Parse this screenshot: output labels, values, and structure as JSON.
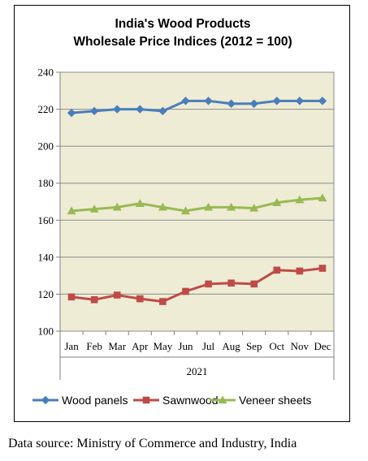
{
  "chart_data": {
    "type": "line",
    "title": [
      "India's Wood Products",
      "Wholesale Price Indices (2012 = 100)"
    ],
    "categories": [
      "Jan",
      "Feb",
      "Mar",
      "Apr",
      "May",
      "Jun",
      "Jul",
      "Aug",
      "Sep",
      "Oct",
      "Nov",
      "Dec"
    ],
    "x_group_label": "2021",
    "ylim": [
      100,
      240
    ],
    "yticks": [
      100,
      120,
      140,
      160,
      180,
      200,
      220,
      240
    ],
    "grid": "horizontal",
    "legend": "bottom",
    "series": [
      {
        "name": "Wood panels",
        "color": "#4a7ebb",
        "marker": "diamond",
        "values": [
          218,
          219,
          220,
          220,
          219,
          224.5,
          224.5,
          223,
          223,
          224.5,
          224.5,
          224.5
        ]
      },
      {
        "name": "Sawnwood",
        "color": "#be4b48",
        "marker": "square",
        "values": [
          118.5,
          117,
          119.5,
          117.5,
          116,
          121.5,
          125.5,
          126,
          125.5,
          133,
          132.5,
          134
        ]
      },
      {
        "name": "Veneer sheets",
        "color": "#98b954",
        "marker": "triangle",
        "values": [
          165,
          166,
          167,
          169,
          167,
          165,
          167,
          167,
          166.5,
          169.5,
          171,
          172
        ]
      }
    ],
    "plot_background": "#eeecd4"
  },
  "footer": {
    "source": "Data source: Ministry of Commerce and Industry, India"
  }
}
